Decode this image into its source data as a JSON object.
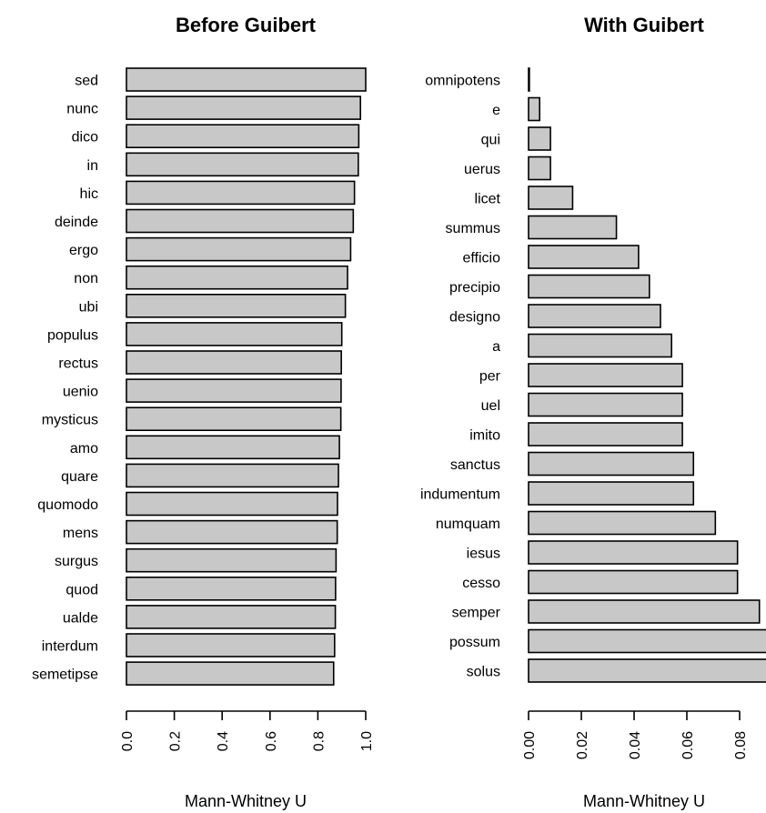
{
  "chart_data": [
    {
      "type": "bar",
      "orientation": "horizontal",
      "title": "Before Guibert",
      "xlabel": "Mann-Whitney U",
      "xlim": [
        0,
        1.0
      ],
      "xticks": [
        "0.0",
        "0.2",
        "0.4",
        "0.6",
        "0.8",
        "1.0"
      ],
      "xtick_values": [
        0,
        0.2,
        0.4,
        0.6,
        0.8,
        1.0
      ],
      "grid": false,
      "legend": "none",
      "bar_color": "#c8c8c8",
      "categories": [
        "sed",
        "nunc",
        "dico",
        "in",
        "hic",
        "deinde",
        "ergo",
        "non",
        "ubi",
        "populus",
        "rectus",
        "uenio",
        "mysticus",
        "amo",
        "quare",
        "quomodo",
        "mens",
        "surgus",
        "quod",
        "ualde",
        "interdum",
        "semetipse"
      ],
      "values": [
        1.0,
        0.978,
        0.971,
        0.969,
        0.953,
        0.948,
        0.937,
        0.924,
        0.915,
        0.9,
        0.898,
        0.897,
        0.896,
        0.89,
        0.886,
        0.882,
        0.881,
        0.876,
        0.874,
        0.873,
        0.87,
        0.866
      ]
    },
    {
      "type": "bar",
      "orientation": "horizontal",
      "title": "With Guibert",
      "xlabel": "Mann-Whitney U",
      "xlim": [
        0,
        0.09
      ],
      "xticks": [
        "0.00",
        "0.02",
        "0.04",
        "0.06",
        "0.08"
      ],
      "xtick_values": [
        0,
        0.02,
        0.04,
        0.06,
        0.08
      ],
      "grid": false,
      "legend": "none",
      "bar_color": "#c8c8c8",
      "categories": [
        "omnipotens",
        "e",
        "qui",
        "uerus",
        "licet",
        "summus",
        "efficio",
        "precipio",
        "designo",
        "a",
        "per",
        "uel",
        "imito",
        "sanctus",
        "indumentum",
        "numquam",
        "iesus",
        "cesso",
        "semper",
        "possum",
        "solus"
      ],
      "values": [
        0.0003,
        0.0042,
        0.0083,
        0.0083,
        0.0167,
        0.0333,
        0.0417,
        0.0458,
        0.05,
        0.0542,
        0.0583,
        0.0583,
        0.0583,
        0.0625,
        0.0625,
        0.0708,
        0.0792,
        0.0792,
        0.0875,
        0.0917,
        0.0917
      ]
    }
  ]
}
